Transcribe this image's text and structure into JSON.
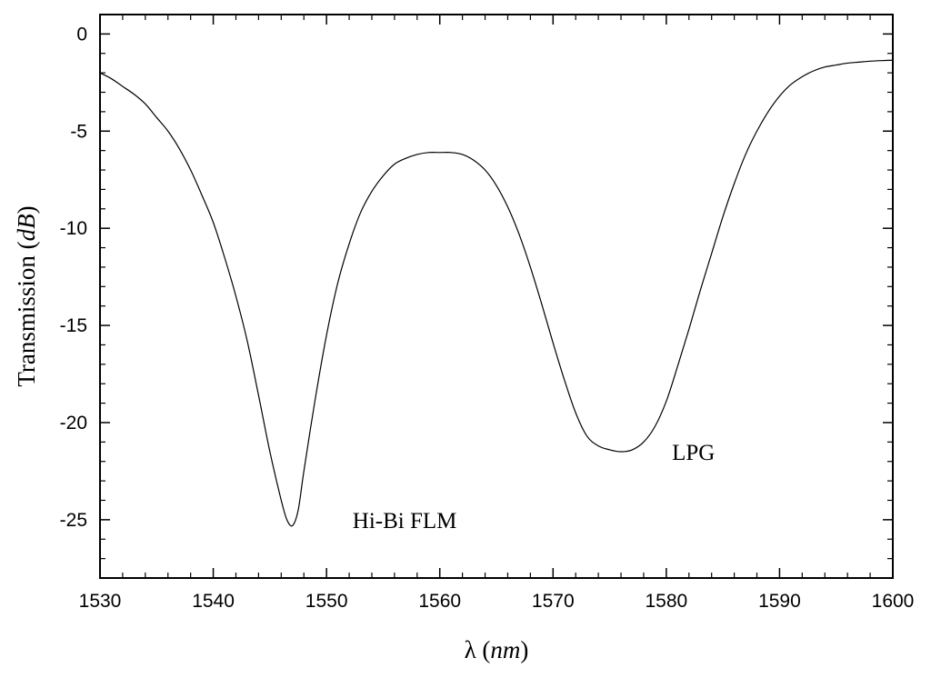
{
  "chart_data": {
    "type": "line",
    "title": "",
    "xlabel": {
      "symbol": "λ",
      "unit": "nm"
    },
    "ylabel": {
      "text": "Transmission",
      "unit": "dB"
    },
    "xlim": [
      1530,
      1600
    ],
    "ylim": [
      -28,
      1
    ],
    "grid": false,
    "legend": "none",
    "xticks": [
      1530,
      1540,
      1550,
      1560,
      1570,
      1580,
      1590,
      1600
    ],
    "yticks": [
      0,
      -5,
      -10,
      -15,
      -20,
      -25
    ],
    "x_minor_step": 2,
    "y_minor_step": 1,
    "line_color": "#000000",
    "series": [
      {
        "x": [
          1530,
          1531,
          1532,
          1533,
          1534,
          1535,
          1536,
          1537,
          1538,
          1539,
          1540,
          1541,
          1542,
          1543,
          1544,
          1545,
          1546,
          1546.5,
          1547,
          1547.5,
          1548,
          1549,
          1550,
          1551,
          1552,
          1553,
          1554,
          1555,
          1556,
          1557,
          1558,
          1559,
          1560,
          1561,
          1562,
          1563,
          1564,
          1565,
          1566,
          1567,
          1568,
          1569,
          1570,
          1571,
          1572,
          1573,
          1574,
          1575,
          1576,
          1577,
          1578,
          1579,
          1580,
          1581,
          1582,
          1583,
          1584,
          1585,
          1586,
          1587,
          1588,
          1589,
          1590,
          1591,
          1592,
          1593,
          1594,
          1595,
          1596,
          1597,
          1598,
          1599,
          1600
        ],
        "y": [
          -2.0,
          -2.3,
          -2.7,
          -3.1,
          -3.6,
          -4.3,
          -5.0,
          -5.9,
          -7.0,
          -8.3,
          -9.7,
          -11.5,
          -13.5,
          -15.8,
          -18.6,
          -21.5,
          -24.0,
          -25.0,
          -25.3,
          -24.5,
          -22.5,
          -18.8,
          -15.5,
          -12.8,
          -10.8,
          -9.2,
          -8.1,
          -7.3,
          -6.7,
          -6.4,
          -6.2,
          -6.1,
          -6.1,
          -6.1,
          -6.2,
          -6.5,
          -7.0,
          -7.8,
          -8.9,
          -10.3,
          -12.0,
          -13.9,
          -15.9,
          -17.8,
          -19.5,
          -20.7,
          -21.2,
          -21.4,
          -21.5,
          -21.4,
          -21.0,
          -20.2,
          -18.9,
          -17.1,
          -15.2,
          -13.2,
          -11.3,
          -9.4,
          -7.7,
          -6.2,
          -5.0,
          -4.0,
          -3.2,
          -2.6,
          -2.2,
          -1.9,
          -1.7,
          -1.6,
          -1.5,
          -1.45,
          -1.4,
          -1.37,
          -1.35
        ]
      }
    ],
    "annotations": [
      {
        "text": "Hi-Bi FLM",
        "x": 1552.3,
        "y": -25.0
      },
      {
        "text": "LPG",
        "x": 1580.5,
        "y": -21.5
      }
    ]
  }
}
